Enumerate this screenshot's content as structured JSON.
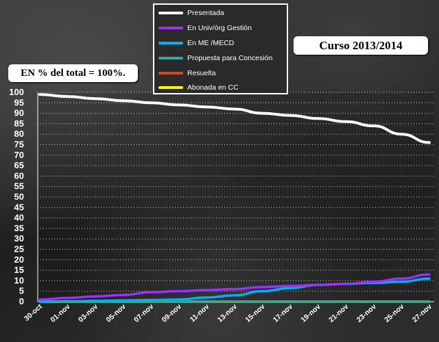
{
  "header": {
    "curso_label": "Curso 2013/2014",
    "total_label": "EN % del total = 100%."
  },
  "chart_data": {
    "type": "line",
    "categories": [
      "30-oct",
      "01-nov",
      "03-nov",
      "05-nov",
      "07-nov",
      "09-nov",
      "11-nov",
      "13-nov",
      "15-nov",
      "17-nov",
      "19-nov",
      "21-nov",
      "23-nov",
      "25-nov",
      "27-nov"
    ],
    "ylim": [
      0,
      100
    ],
    "yticks": [
      0,
      5,
      10,
      15,
      20,
      25,
      30,
      35,
      40,
      45,
      50,
      55,
      60,
      65,
      70,
      75,
      80,
      85,
      90,
      95,
      100
    ],
    "grid": true,
    "legend_position": "top-center",
    "series": [
      {
        "name": "Presentada",
        "color": "#ffffff",
        "values": [
          99,
          98,
          97,
          96,
          95,
          94,
          93,
          92,
          90,
          89,
          87.5,
          86,
          84,
          80,
          76
        ]
      },
      {
        "name": "En Univ/órg Gestión",
        "color": "#9b30ff",
        "values": [
          1,
          1.8,
          2.5,
          3.2,
          4.5,
          5,
          5.5,
          6,
          7,
          7.5,
          8,
          8.5,
          9.5,
          11,
          13
        ]
      },
      {
        "name": "En ME /MECD",
        "color": "#00b0f0",
        "values": [
          0,
          0.2,
          0.4,
          0.6,
          0.8,
          1,
          2,
          3,
          5,
          6.5,
          8,
          8.5,
          9,
          9.5,
          11
        ]
      },
      {
        "name": "Propuesta para  Concesión",
        "color": "#2fa6a6",
        "values": [
          0,
          0,
          0,
          0,
          0,
          0,
          0,
          0,
          0,
          0,
          0,
          0,
          0,
          0,
          0
        ]
      },
      {
        "name": "Resuelta",
        "color": "#d2481c",
        "values": [
          0,
          0,
          0,
          0,
          0,
          0,
          0,
          0,
          0,
          0,
          0,
          0,
          0,
          0,
          0
        ]
      },
      {
        "name": "Abonada en CC",
        "color": "#ffff00",
        "values": [
          0,
          0,
          0,
          0,
          0,
          0,
          0,
          0,
          0,
          0,
          0,
          0,
          0,
          0,
          0
        ]
      }
    ]
  }
}
